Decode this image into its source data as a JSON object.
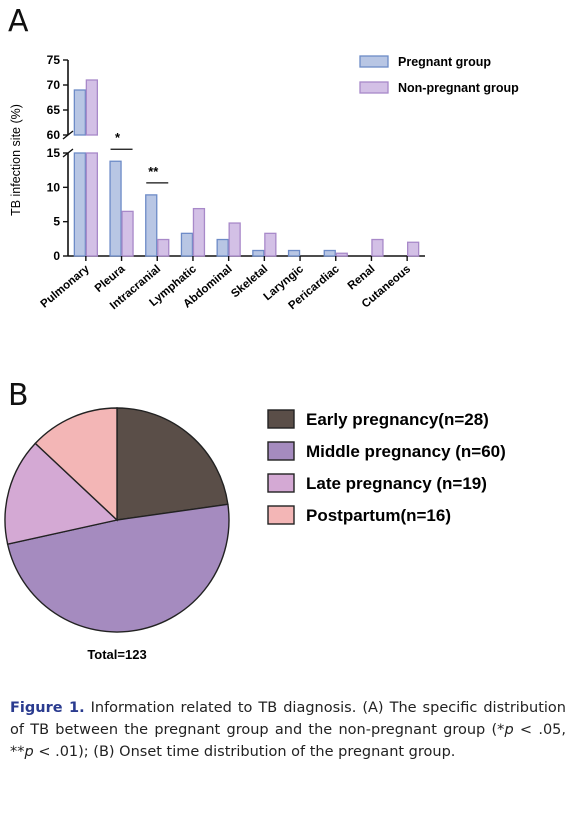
{
  "chart_data": [
    {
      "panel": "A",
      "type": "bar",
      "ylabel": "TB infection site (%)",
      "categories": [
        "Pulmonary",
        "Pleura",
        "Intracranial",
        "Lymphatic",
        "Abdominal",
        "Skeletal",
        "Laryngic",
        "Pericardiac",
        "Renal",
        "Cutaneous"
      ],
      "series": [
        {
          "name": "Pregnant group",
          "values": [
            69,
            13.8,
            8.9,
            3.3,
            2.4,
            0.8,
            0.8,
            0.8,
            0,
            0
          ]
        },
        {
          "name": "Non-pregnant group",
          "values": [
            71,
            6.5,
            2.4,
            6.9,
            4.8,
            3.3,
            0,
            0.4,
            2.4,
            2.0
          ]
        }
      ],
      "colors": {
        "pregnant_fill": "#b8c6e4",
        "pregnant_stroke": "#6d8bc7",
        "nonpregnant_fill": "#d3c0e6",
        "nonpregnant_stroke": "#a889c9"
      },
      "ylim_lower": [
        0,
        15
      ],
      "ylim_upper": [
        60,
        75
      ],
      "yticks_lower": [
        "0",
        "5",
        "10",
        "15"
      ],
      "yticks_upper": [
        "60",
        "65",
        "70",
        "75"
      ],
      "axis_break": true,
      "significance": [
        {
          "category": "Pleura",
          "label": "*"
        },
        {
          "category": "Intracranial",
          "label": "**"
        }
      ],
      "legend_position": "top-right"
    },
    {
      "panel": "B",
      "type": "pie",
      "slices": [
        {
          "label": "Early pregnancy(n=28)",
          "value": 28,
          "color": "#5a4e48"
        },
        {
          "label": "Middle pregnancy (n=60)",
          "value": 60,
          "color": "#a58bbf"
        },
        {
          "label": "Late pregnancy (n=19)",
          "value": 19,
          "color": "#d4a9d4"
        },
        {
          "label": "Postpartum(n=16)",
          "value": 16,
          "color": "#f3b6b6"
        }
      ],
      "total_label": "Total=123",
      "legend_position": "right"
    }
  ],
  "panels": {
    "a": "A",
    "b": "B"
  },
  "caption": {
    "figure": "Figure 1.",
    "text1": " Information related to TB diagnosis. (A) The specific distribution of TB between the pregnant group and the non-pregnant group (*",
    "p1": "p",
    "text2": " < .05, **",
    "p2": "p",
    "text3": " < .01); (B) Onset time distribution of the pregnant group."
  }
}
